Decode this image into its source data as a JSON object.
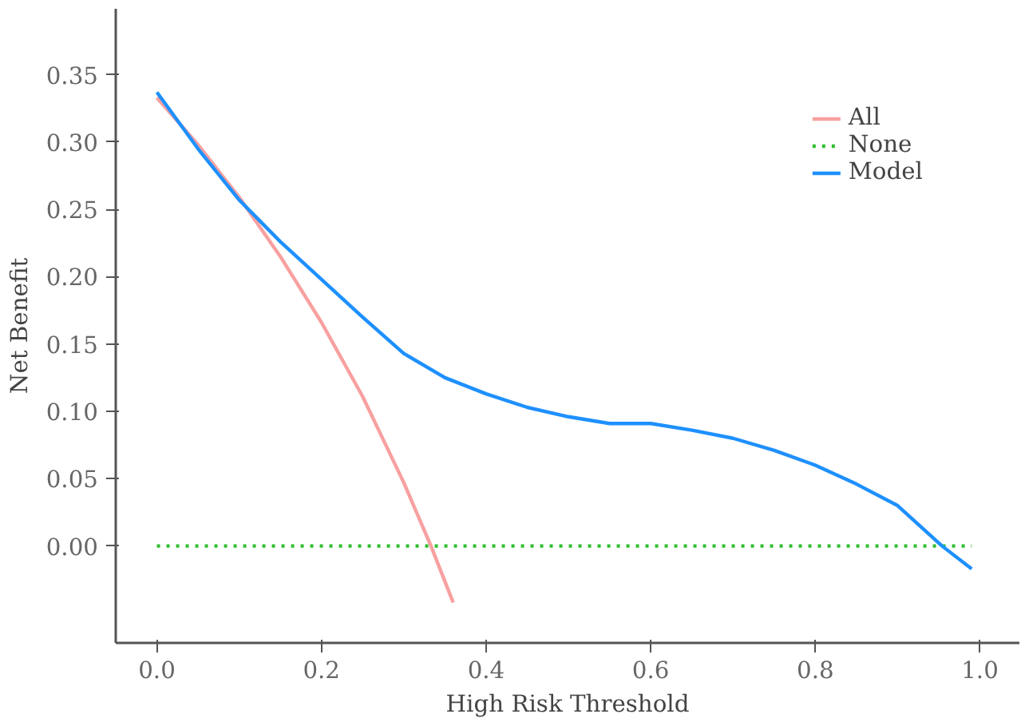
{
  "chart_data": {
    "type": "line",
    "xlabel": "High Risk Threshold",
    "ylabel": "Net Benefit",
    "xlim": [
      -0.05,
      1.048
    ],
    "ylim": [
      -0.072,
      0.399
    ],
    "xticks": [
      {
        "value": 0,
        "label": "0.0"
      },
      {
        "value": 0.2,
        "label": "0.2"
      },
      {
        "value": 0.4,
        "label": "0.4"
      },
      {
        "value": 0.6,
        "label": "0.6"
      },
      {
        "value": 0.8,
        "label": "0.8"
      },
      {
        "value": 1,
        "label": "1.0"
      }
    ],
    "yticks": [
      {
        "value": 0,
        "label": "0.00"
      },
      {
        "value": 0.05,
        "label": "0.05"
      },
      {
        "value": 0.1,
        "label": "0.10"
      },
      {
        "value": 0.15,
        "label": "0.15"
      },
      {
        "value": 0.2,
        "label": "0.20"
      },
      {
        "value": 0.25,
        "label": "0.25"
      },
      {
        "value": 0.3,
        "label": "0.30"
      },
      {
        "value": 0.35,
        "label": "0.35"
      }
    ],
    "grid": false,
    "legend": "top right",
    "marker": "none",
    "series": [
      {
        "name": "All",
        "color": "#f8a0a0",
        "line_style": "solid",
        "x": [
          0,
          0.05,
          0.1,
          0.15,
          0.2,
          0.25,
          0.3,
          0.333,
          0.36
        ],
        "values": [
          0.333,
          0.298,
          0.259,
          0.215,
          0.166,
          0.111,
          0.047,
          0.0,
          -0.042
        ]
      },
      {
        "name": "None",
        "color": "#2fbf2f",
        "line_style": "dotted",
        "x": [
          0,
          0.99
        ],
        "values": [
          0,
          0
        ]
      },
      {
        "name": "Model",
        "color": "#1e90ff",
        "line_style": "solid",
        "x": [
          0,
          0.05,
          0.1,
          0.15,
          0.2,
          0.25,
          0.3,
          0.35,
          0.4,
          0.45,
          0.5,
          0.55,
          0.6,
          0.65,
          0.7,
          0.75,
          0.8,
          0.85,
          0.9,
          0.954,
          0.99
        ],
        "values": [
          0.337,
          0.295,
          0.257,
          0.226,
          0.198,
          0.17,
          0.143,
          0.125,
          0.113,
          0.103,
          0.096,
          0.091,
          0.091,
          0.086,
          0.08,
          0.071,
          0.06,
          0.046,
          0.03,
          0.0,
          -0.017
        ]
      }
    ]
  }
}
